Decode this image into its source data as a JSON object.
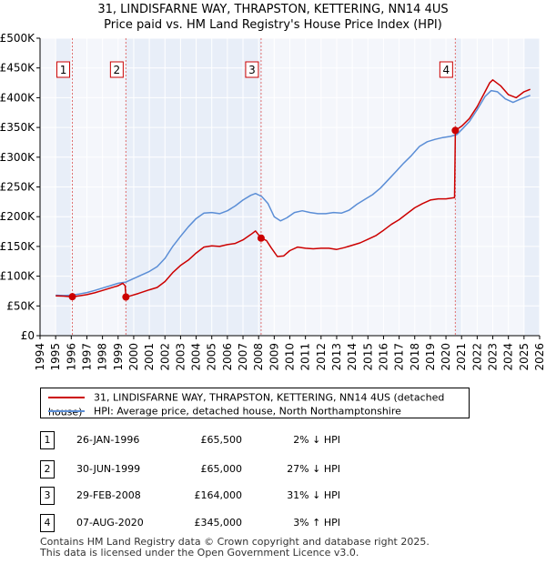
{
  "title_line1": "31, LINDISFARNE WAY, THRAPSTON, KETTERING, NN14 4US",
  "title_line2": "Price paid vs. HM Land Registry's House Price Index (HPI)",
  "chart_data": {
    "type": "line",
    "title": "31, LINDISFARNE WAY, THRAPSTON, KETTERING, NN14 4US — Price paid vs. HM Land Registry's House Price Index (HPI)",
    "xlabel": "",
    "ylabel": "",
    "xlim": [
      1994.0,
      2026.0
    ],
    "ylim": [
      0,
      500000
    ],
    "x_ticks": [
      1994,
      1995,
      1996,
      1997,
      1998,
      1999,
      2000,
      2001,
      2002,
      2003,
      2004,
      2005,
      2006,
      2007,
      2008,
      2009,
      2010,
      2011,
      2012,
      2013,
      2014,
      2015,
      2016,
      2017,
      2018,
      2019,
      2020,
      2021,
      2022,
      2023,
      2024,
      2025,
      2026
    ],
    "y_ticks": [
      {
        "value": 0,
        "label": "£0"
      },
      {
        "value": 50000,
        "label": "£50K"
      },
      {
        "value": 100000,
        "label": "£100K"
      },
      {
        "value": 150000,
        "label": "£150K"
      },
      {
        "value": 200000,
        "label": "£200K"
      },
      {
        "value": 250000,
        "label": "£250K"
      },
      {
        "value": 300000,
        "label": "£300K"
      },
      {
        "value": 350000,
        "label": "£350K"
      },
      {
        "value": 400000,
        "label": "£400K"
      },
      {
        "value": 450000,
        "label": "£450K"
      },
      {
        "value": 500000,
        "label": "£500K"
      }
    ],
    "shaded_ranges": [
      [
        1995.0,
        1996.07
      ],
      [
        1999.5,
        2008.16
      ],
      [
        2020.6,
        2021.0
      ],
      [
        2025.0,
        2026.0
      ]
    ],
    "sale_lines_color": "#e05050",
    "colors": {
      "property": "#cc0000",
      "hpi": "#5b8ed6",
      "shade": "#e8eef8",
      "grid": "#ffffff",
      "sale_line": "#e07070"
    },
    "series": [
      {
        "name": "31, LINDISFARNE WAY, THRAPSTON, KETTERING, NN14 4US (detached house)",
        "points": [
          [
            1995.0,
            67000
          ],
          [
            1995.5,
            66500
          ],
          [
            1996.07,
            65500
          ],
          [
            1996.5,
            67000
          ],
          [
            1997.0,
            69000
          ],
          [
            1997.5,
            72000
          ],
          [
            1998.0,
            76000
          ],
          [
            1998.5,
            80000
          ],
          [
            1999.0,
            84000
          ],
          [
            1999.3,
            88000
          ],
          [
            1999.45,
            84000
          ],
          [
            1999.5,
            65000
          ],
          [
            1999.8,
            67000
          ],
          [
            2000.3,
            71000
          ],
          [
            2001.0,
            77000
          ],
          [
            2001.5,
            81000
          ],
          [
            2002.0,
            91000
          ],
          [
            2002.5,
            106000
          ],
          [
            2003.0,
            118000
          ],
          [
            2003.5,
            127000
          ],
          [
            2004.0,
            139000
          ],
          [
            2004.5,
            149000
          ],
          [
            2005.0,
            151000
          ],
          [
            2005.5,
            150000
          ],
          [
            2006.0,
            153000
          ],
          [
            2006.5,
            155000
          ],
          [
            2007.0,
            161000
          ],
          [
            2007.5,
            170000
          ],
          [
            2007.8,
            176000
          ],
          [
            2008.16,
            164000
          ],
          [
            2008.5,
            160000
          ],
          [
            2008.8,
            148000
          ],
          [
            2009.2,
            133000
          ],
          [
            2009.6,
            134000
          ],
          [
            2010.0,
            143000
          ],
          [
            2010.5,
            149000
          ],
          [
            2011.0,
            147000
          ],
          [
            2011.5,
            146000
          ],
          [
            2012.0,
            147000
          ],
          [
            2012.5,
            147000
          ],
          [
            2013.0,
            145000
          ],
          [
            2013.5,
            148000
          ],
          [
            2014.0,
            152000
          ],
          [
            2014.5,
            156000
          ],
          [
            2015.0,
            162000
          ],
          [
            2015.5,
            168000
          ],
          [
            2016.0,
            177000
          ],
          [
            2016.5,
            187000
          ],
          [
            2017.0,
            195000
          ],
          [
            2017.5,
            205000
          ],
          [
            2018.0,
            215000
          ],
          [
            2018.5,
            222000
          ],
          [
            2019.0,
            228000
          ],
          [
            2019.5,
            230000
          ],
          [
            2020.0,
            230000
          ],
          [
            2020.55,
            232000
          ],
          [
            2020.6,
            345000
          ],
          [
            2021.0,
            352000
          ],
          [
            2021.5,
            365000
          ],
          [
            2022.0,
            385000
          ],
          [
            2022.5,
            410000
          ],
          [
            2022.8,
            425000
          ],
          [
            2023.0,
            430000
          ],
          [
            2023.5,
            420000
          ],
          [
            2024.0,
            405000
          ],
          [
            2024.5,
            400000
          ],
          [
            2025.0,
            410000
          ],
          [
            2025.4,
            414000
          ]
        ]
      },
      {
        "name": "HPI: Average price, detached house, North Northamptonshire",
        "points": [
          [
            1995.0,
            68000
          ],
          [
            1995.5,
            67500
          ],
          [
            1996.0,
            68000
          ],
          [
            1996.5,
            70000
          ],
          [
            1997.0,
            72500
          ],
          [
            1997.5,
            76000
          ],
          [
            1998.0,
            80000
          ],
          [
            1998.5,
            84000
          ],
          [
            1999.0,
            88000
          ],
          [
            1999.5,
            90000
          ],
          [
            2000.0,
            96000
          ],
          [
            2000.5,
            102000
          ],
          [
            2001.0,
            108000
          ],
          [
            2001.5,
            116000
          ],
          [
            2002.0,
            130000
          ],
          [
            2002.5,
            150000
          ],
          [
            2003.0,
            167000
          ],
          [
            2003.5,
            183000
          ],
          [
            2004.0,
            197000
          ],
          [
            2004.5,
            206000
          ],
          [
            2005.0,
            207000
          ],
          [
            2005.5,
            205000
          ],
          [
            2006.0,
            210000
          ],
          [
            2006.5,
            218000
          ],
          [
            2007.0,
            228000
          ],
          [
            2007.5,
            236000
          ],
          [
            2007.8,
            239000
          ],
          [
            2008.2,
            234000
          ],
          [
            2008.6,
            222000
          ],
          [
            2009.0,
            200000
          ],
          [
            2009.4,
            193000
          ],
          [
            2009.8,
            198000
          ],
          [
            2010.3,
            207000
          ],
          [
            2010.8,
            210000
          ],
          [
            2011.3,
            207000
          ],
          [
            2011.8,
            205000
          ],
          [
            2012.3,
            205000
          ],
          [
            2012.8,
            207000
          ],
          [
            2013.3,
            206000
          ],
          [
            2013.8,
            211000
          ],
          [
            2014.3,
            221000
          ],
          [
            2014.8,
            229000
          ],
          [
            2015.3,
            237000
          ],
          [
            2015.8,
            248000
          ],
          [
            2016.3,
            262000
          ],
          [
            2016.8,
            276000
          ],
          [
            2017.3,
            290000
          ],
          [
            2017.8,
            303000
          ],
          [
            2018.3,
            318000
          ],
          [
            2018.8,
            326000
          ],
          [
            2019.3,
            330000
          ],
          [
            2019.8,
            333000
          ],
          [
            2020.3,
            335000
          ],
          [
            2020.7,
            338000
          ],
          [
            2021.0,
            346000
          ],
          [
            2021.5,
            360000
          ],
          [
            2022.0,
            380000
          ],
          [
            2022.5,
            402000
          ],
          [
            2022.9,
            412000
          ],
          [
            2023.3,
            410000
          ],
          [
            2023.8,
            398000
          ],
          [
            2024.3,
            392000
          ],
          [
            2024.8,
            398000
          ],
          [
            2025.4,
            404000
          ]
        ]
      }
    ],
    "sales": [
      {
        "id": "1",
        "x": 1996.07,
        "price": 65500
      },
      {
        "id": "2",
        "x": 1999.5,
        "price": 65000
      },
      {
        "id": "3",
        "x": 2008.16,
        "price": 164000
      },
      {
        "id": "4",
        "x": 2020.6,
        "price": 345000
      }
    ]
  },
  "legend": {
    "property_label": "31, LINDISFARNE WAY, THRAPSTON, KETTERING, NN14 4US (detached house)",
    "hpi_label": "HPI: Average price, detached house, North Northamptonshire"
  },
  "transactions": [
    {
      "id": "1",
      "date": "26-JAN-1996",
      "price": "£65,500",
      "hpi": "2% ↓ HPI"
    },
    {
      "id": "2",
      "date": "30-JUN-1999",
      "price": "£65,000",
      "hpi": "27% ↓ HPI"
    },
    {
      "id": "3",
      "date": "29-FEB-2008",
      "price": "£164,000",
      "hpi": "31% ↓ HPI"
    },
    {
      "id": "4",
      "date": "07-AUG-2020",
      "price": "£345,000",
      "hpi": "3% ↑ HPI"
    }
  ],
  "footer": {
    "line1": "Contains HM Land Registry data © Crown copyright and database right 2025.",
    "line2": "This data is licensed under the Open Government Licence v3.0."
  }
}
